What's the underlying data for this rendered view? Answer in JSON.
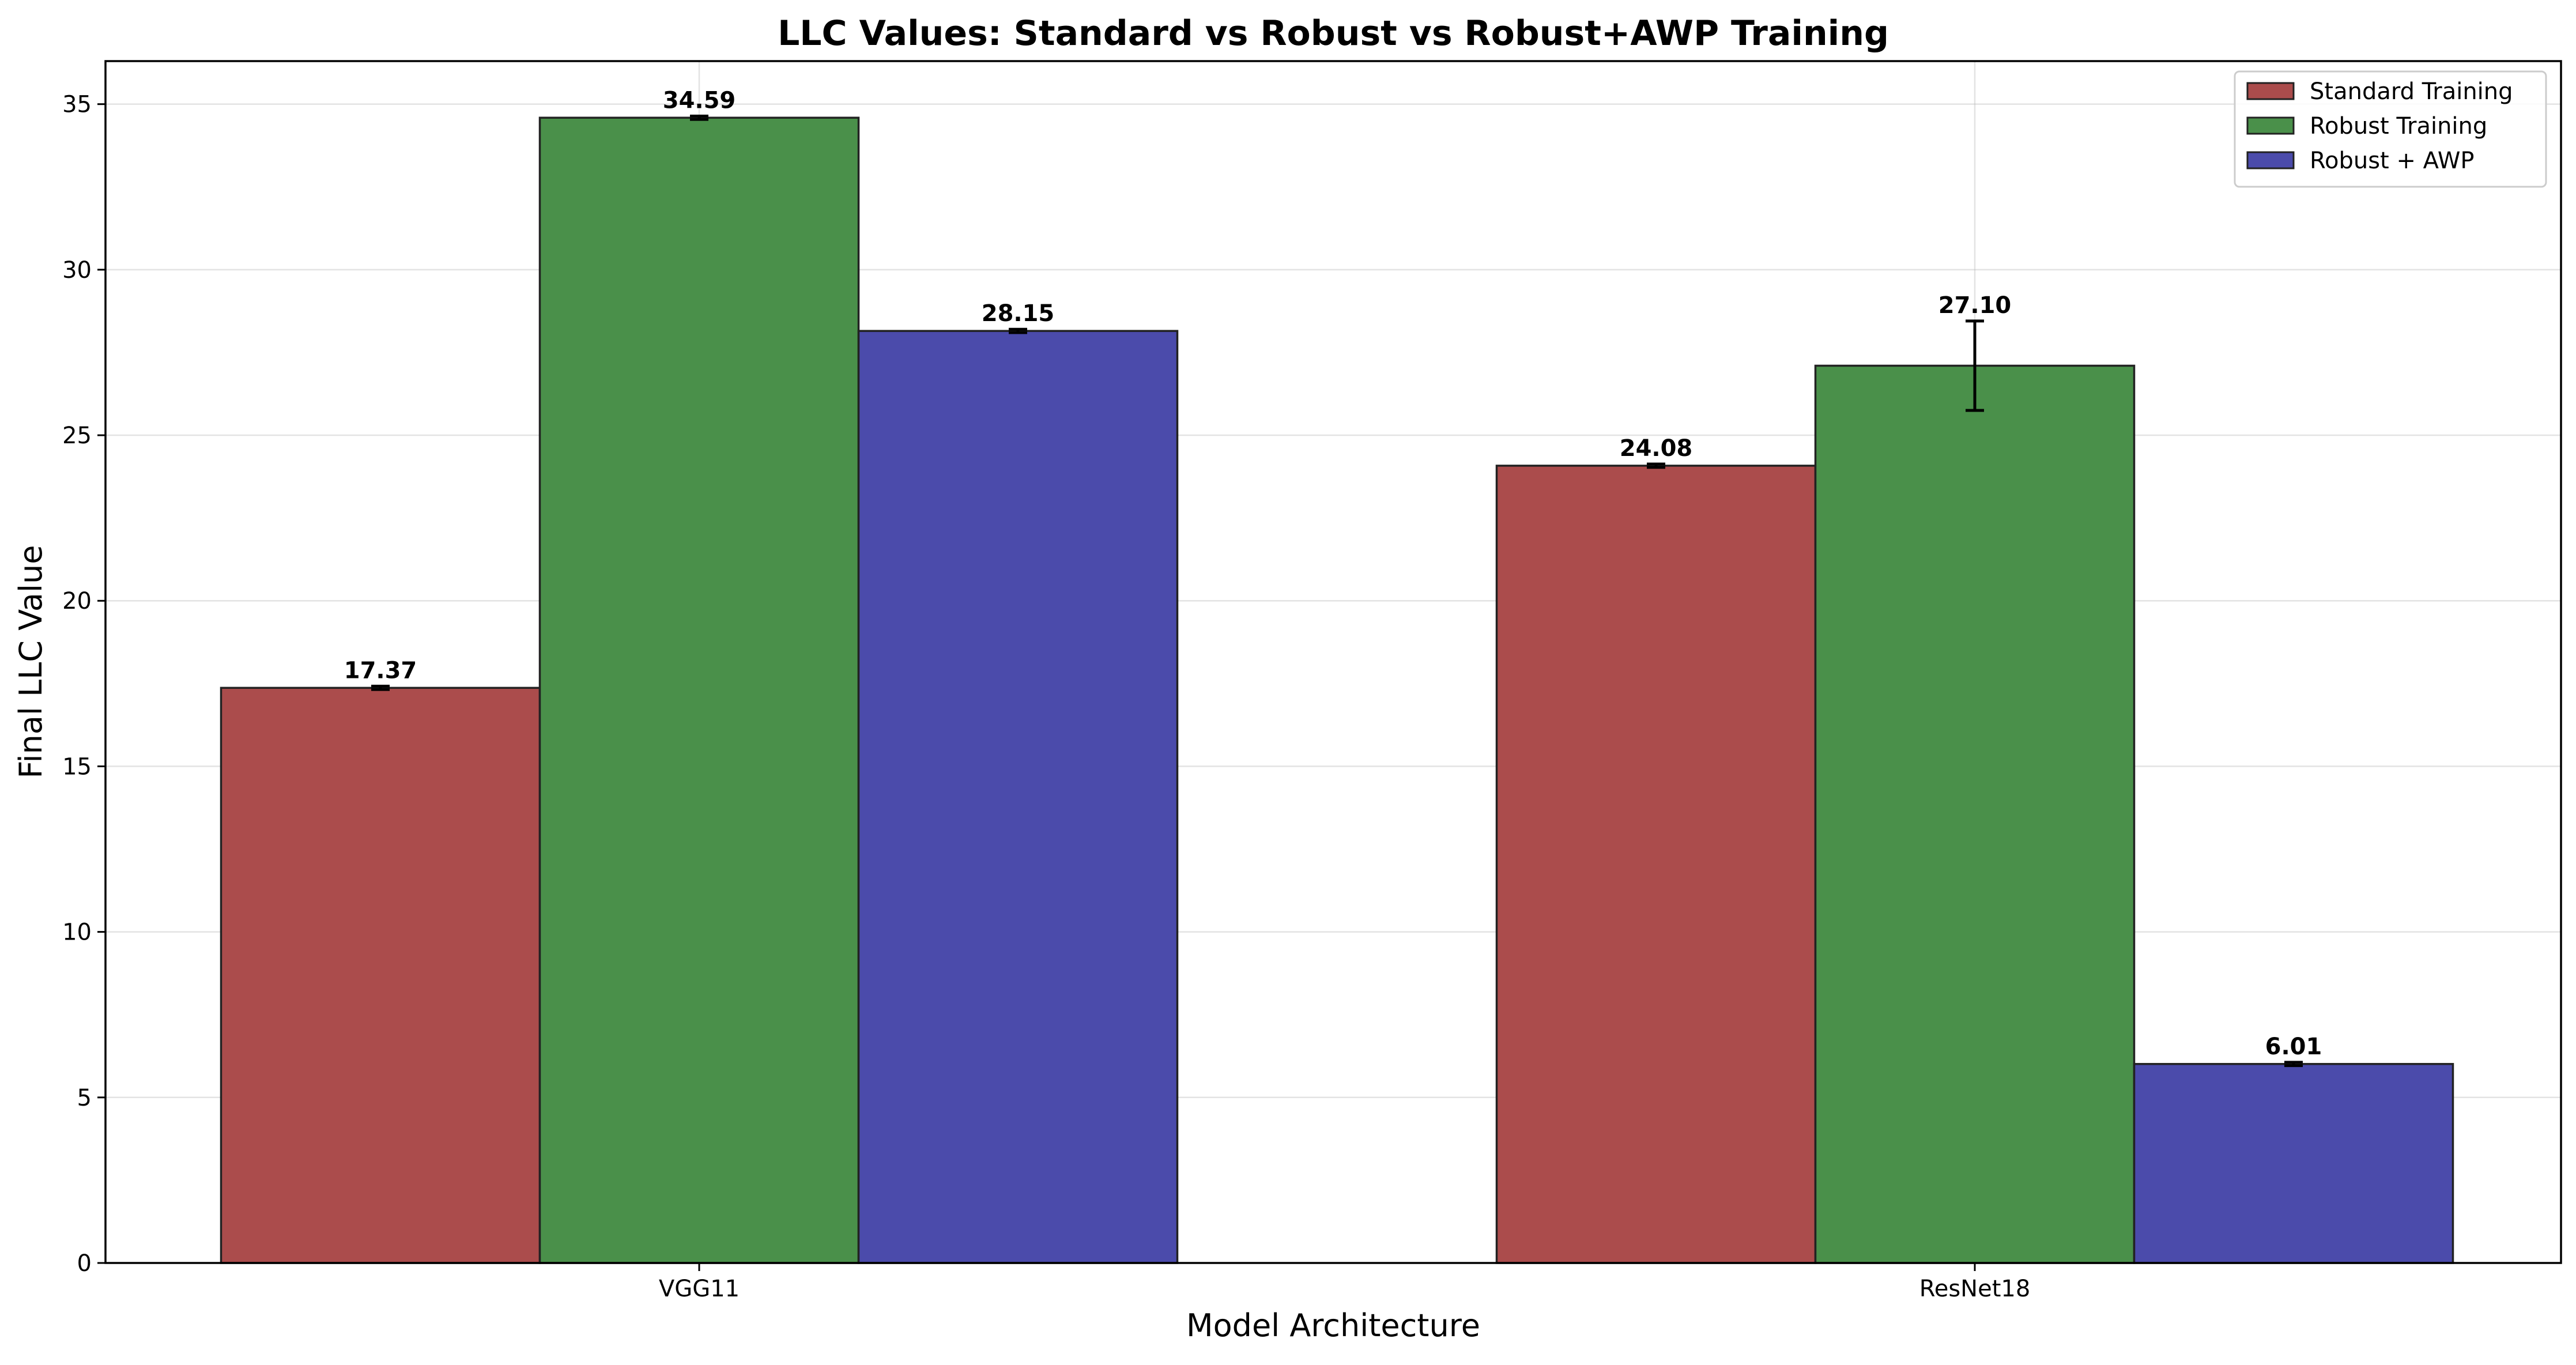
{
  "chart_data": {
    "type": "bar",
    "title": "LLC Values: Standard vs Robust vs Robust+AWP Training",
    "xlabel": "Model Architecture",
    "ylabel": "Final LLC Value",
    "categories": [
      "VGG11",
      "ResNet18"
    ],
    "series": [
      {
        "name": "Standard Training",
        "color": "#ab4c4c",
        "values": [
          17.37,
          24.08
        ],
        "labels": [
          "17.37",
          "24.08"
        ],
        "errors": [
          0.05,
          0.05
        ]
      },
      {
        "name": "Robust Training",
        "color": "#4a904a",
        "values": [
          34.59,
          27.1
        ],
        "labels": [
          "34.59",
          "27.10"
        ],
        "errors": [
          0.05,
          1.35
        ]
      },
      {
        "name": "Robust + AWP",
        "color": "#4b4bab",
        "values": [
          28.15,
          6.01
        ],
        "labels": [
          "28.15",
          "6.01"
        ],
        "errors": [
          0.05,
          0.05
        ]
      }
    ],
    "ylim": [
      0,
      36.3
    ],
    "yticks": [
      0,
      5,
      10,
      15,
      20,
      25,
      30,
      35
    ],
    "ytick_labels": [
      "0",
      "5",
      "10",
      "15",
      "20",
      "25",
      "30",
      "35"
    ],
    "grid": true,
    "legend_position": "top-right"
  }
}
